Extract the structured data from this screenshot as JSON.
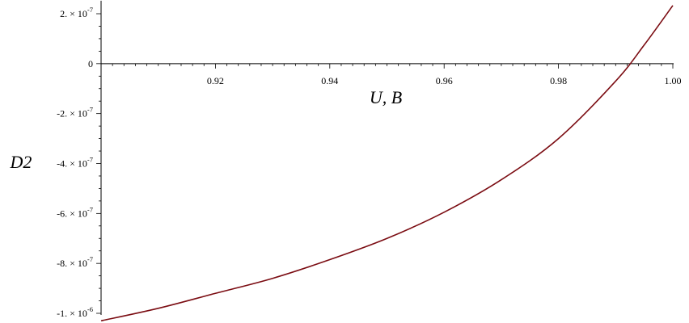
{
  "chart_data": {
    "type": "line",
    "title": "",
    "xlabel": "U, B",
    "ylabel": "D2",
    "xlim": [
      0.9,
      1.0
    ],
    "ylim": [
      -1e-06,
      2.2e-07
    ],
    "x_ticks": [
      {
        "value": 0.92,
        "label": "0.92"
      },
      {
        "value": 0.94,
        "label": "0.94"
      },
      {
        "value": 0.96,
        "label": "0.96"
      },
      {
        "value": 0.98,
        "label": "0.98"
      },
      {
        "value": 1.0,
        "label": "1.00"
      }
    ],
    "y_ticks": [
      {
        "value": 2e-07,
        "mantissa": "2. ×",
        "base": "10",
        "exp": "-7"
      },
      {
        "value": 0,
        "mantissa": "0",
        "base": "",
        "exp": ""
      },
      {
        "value": -2e-07,
        "mantissa": "-2. ×",
        "base": "10",
        "exp": "-7"
      },
      {
        "value": -4e-07,
        "mantissa": "-4. ×",
        "base": "10",
        "exp": "-7"
      },
      {
        "value": -6e-07,
        "mantissa": "-6. ×",
        "base": "10",
        "exp": "-7"
      },
      {
        "value": -8e-07,
        "mantissa": "-8. ×",
        "base": "10",
        "exp": "-7"
      },
      {
        "value": -1e-06,
        "mantissa": "-1. ×",
        "base": "10",
        "exp": "-6"
      }
    ],
    "grid": false,
    "series": [
      {
        "color": "#7b0c12",
        "x": [
          0.9,
          0.91,
          0.92,
          0.93,
          0.94,
          0.95,
          0.96,
          0.97,
          0.98,
          0.99,
          0.995,
          1.0
        ],
        "y": [
          -1.03e-06,
          -9.8e-07,
          -9.2e-07,
          -8.6e-07,
          -7.85e-07,
          -7e-07,
          -5.95e-07,
          -4.65e-07,
          -3e-07,
          -7e-08,
          7.5e-08,
          2.33e-07
        ]
      }
    ]
  }
}
